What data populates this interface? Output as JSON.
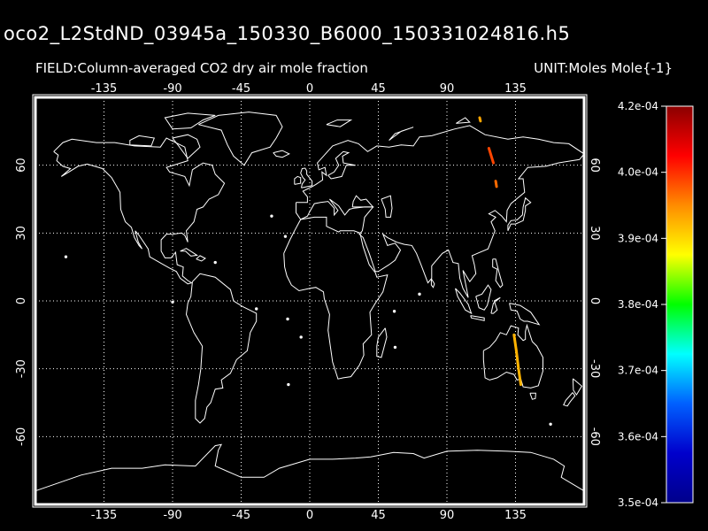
{
  "title": "oco2_L2StdND_03945a_150330_B6000_150331024816.h5",
  "field_label": "FIELD:Column-averaged CO2 dry air mole fraction",
  "unit_label": "UNIT:Moles Mole{-1}",
  "map": {
    "lon_ticks": [
      "-135",
      "-90",
      "-45",
      "0",
      "45",
      "90",
      "135"
    ],
    "lat_ticks": [
      "60",
      "30",
      "0",
      "-30",
      "-60"
    ],
    "lon_values": [
      -135,
      -90,
      -45,
      0,
      45,
      90,
      135
    ],
    "lat_values": [
      60,
      30,
      0,
      -30,
      -60
    ],
    "lon_range": [
      -180,
      180
    ],
    "lat_range": [
      -90,
      90
    ],
    "grid": "dotted",
    "coastline_color": "#ffffff"
  },
  "colorbar": {
    "labels": [
      "4.2e-04",
      "4.0e-04",
      "3.9e-04",
      "3.8e-04",
      "3.7e-04",
      "3.6e-04",
      "3.5e-04"
    ],
    "stops": [
      "#8b0000",
      "#ff0000",
      "#ff8c00",
      "#ffff00",
      "#00ff00",
      "#00ffff",
      "#0060ff",
      "#0000cc",
      "#00008b"
    ]
  },
  "swaths": [
    {
      "name": "siberia-swath",
      "color": "#ff4500",
      "points": [
        [
          117.5,
          67.5
        ],
        [
          120.5,
          61
        ]
      ]
    },
    {
      "name": "siberia-dot",
      "color": "#ffa500",
      "points": [
        [
          111.5,
          81
        ],
        [
          112,
          79.5
        ]
      ]
    },
    {
      "name": "china-swath",
      "color": "#ff6a00",
      "points": [
        [
          122,
          53
        ],
        [
          122.6,
          50.5
        ]
      ]
    },
    {
      "name": "australia-swath",
      "color": "#ffb300",
      "points": [
        [
          134,
          -15
        ],
        [
          135.5,
          -22
        ],
        [
          137,
          -30
        ],
        [
          138.5,
          -37
        ]
      ]
    }
  ]
}
